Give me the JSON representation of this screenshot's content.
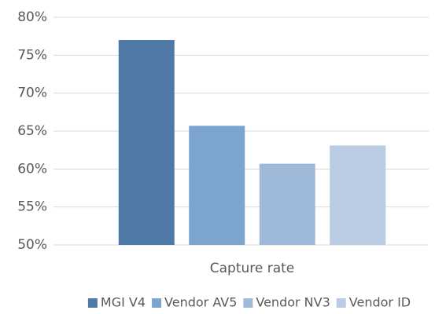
{
  "chart_data": {
    "type": "bar",
    "categories": [
      "Capture rate"
    ],
    "series": [
      {
        "name": "MGI V4",
        "color": "#4f7aa8",
        "values": [
          77
        ]
      },
      {
        "name": "Vendor AV5",
        "color": "#7ba4cf",
        "values": [
          65.7
        ]
      },
      {
        "name": "Vendor NV3",
        "color": "#9fbad9",
        "values": [
          60.7
        ]
      },
      {
        "name": "Vendor ID",
        "color": "#b9cce4",
        "values": [
          63.1
        ]
      }
    ],
    "ylim": [
      50,
      80
    ],
    "yticks": [
      {
        "value": 50,
        "label": "50%"
      },
      {
        "value": 55,
        "label": "55%"
      },
      {
        "value": 60,
        "label": "60%"
      },
      {
        "value": 65,
        "label": "65%"
      },
      {
        "value": 70,
        "label": "70%"
      },
      {
        "value": 75,
        "label": "75%"
      },
      {
        "value": 80,
        "label": "80%"
      }
    ],
    "grid": true,
    "legend": "bottom"
  }
}
